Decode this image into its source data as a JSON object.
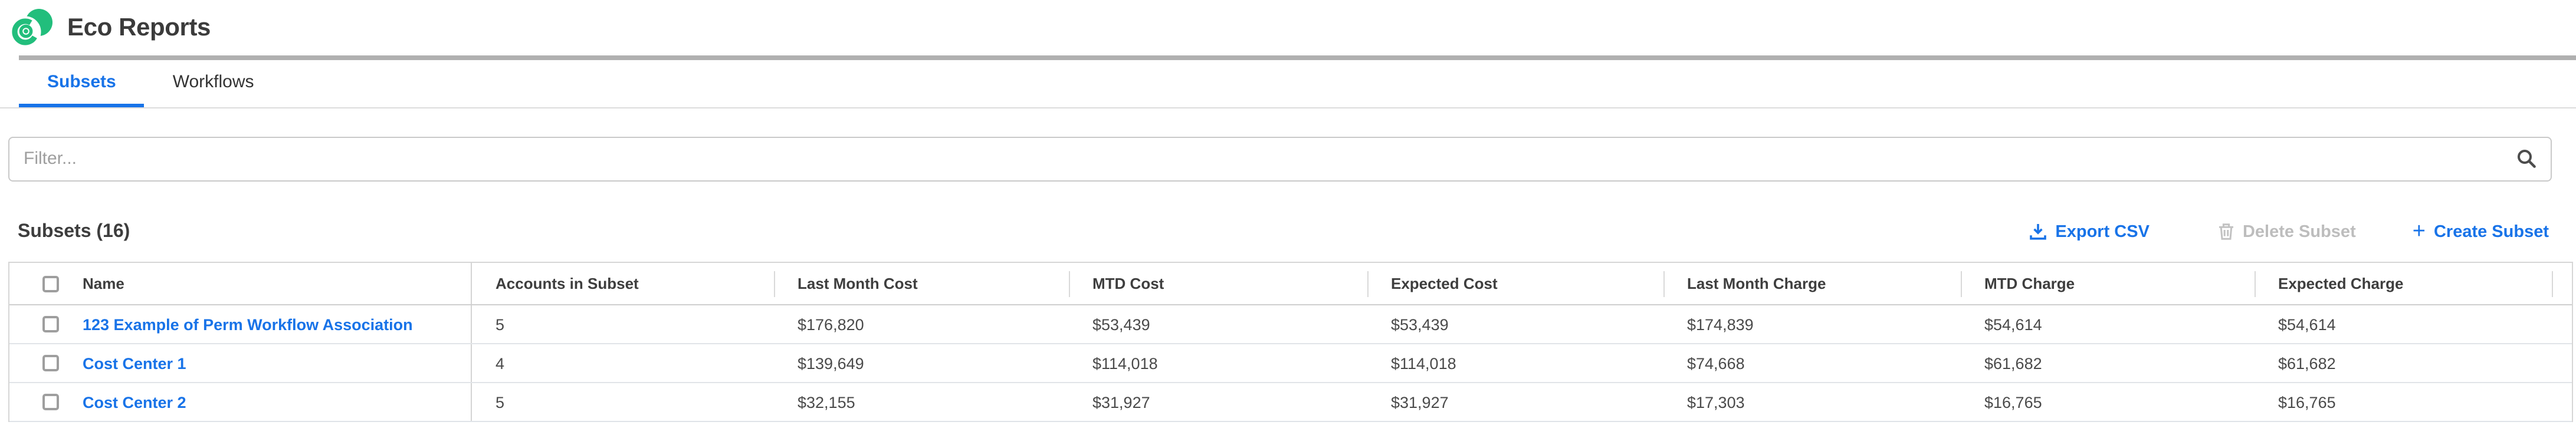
{
  "colors": {
    "accent_blue": "#1873e8",
    "logo_green": "#22be7c",
    "disabled_gray": "#bdbdbd",
    "text_dark": "#3d3d3d"
  },
  "header": {
    "title": "Eco Reports",
    "logo_icon": "eco-swirl-logo"
  },
  "tabs": [
    {
      "label": "Subsets",
      "active": true
    },
    {
      "label": "Workflows",
      "active": false
    }
  ],
  "filter": {
    "placeholder": "Filter...",
    "value": "",
    "icon": "search-icon"
  },
  "toolbar": {
    "heading": "Subsets (16)",
    "export_label": "Export CSV",
    "export_icon": "download-icon",
    "delete_label": "Delete Subset",
    "delete_icon": "trash-icon",
    "delete_disabled": true,
    "create_label": "Create Subset",
    "create_icon": "plus-icon"
  },
  "table": {
    "columns": [
      "Name",
      "Accounts in Subset",
      "Last Month Cost",
      "MTD Cost",
      "Expected Cost",
      "Last Month Charge",
      "MTD Charge",
      "Expected Charge"
    ],
    "rows": [
      {
        "name": "123 Example of Perm Workflow Association",
        "values": [
          "5",
          "$176,820",
          "$53,439",
          "$53,439",
          "$174,839",
          "$54,614",
          "$54,614"
        ]
      },
      {
        "name": "Cost Center 1",
        "values": [
          "4",
          "$139,649",
          "$114,018",
          "$114,018",
          "$74,668",
          "$61,682",
          "$61,682"
        ]
      },
      {
        "name": "Cost Center 2",
        "values": [
          "5",
          "$32,155",
          "$31,927",
          "$31,927",
          "$17,303",
          "$16,765",
          "$16,765"
        ]
      }
    ]
  }
}
